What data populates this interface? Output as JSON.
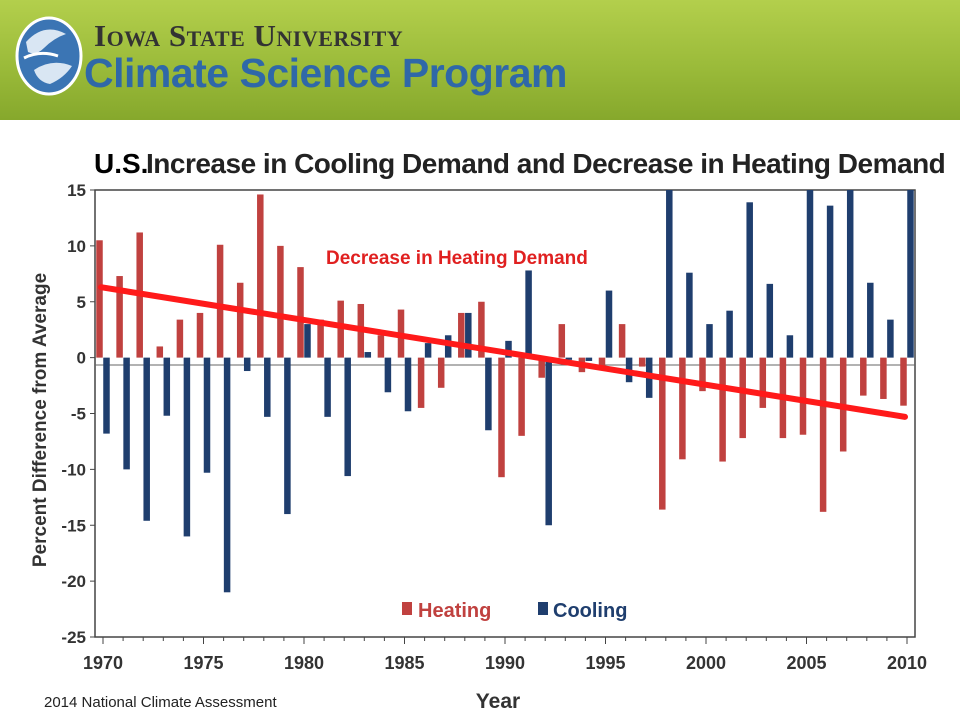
{
  "header": {
    "university": "Iowa State University",
    "program": "Climate Science Program",
    "brand_green": "#a6c440",
    "brand_blue": "#2f68a8",
    "logo_icon": "globe-swirl-icon"
  },
  "title_prefix": "U.S.",
  "source": "2014 National Climate Assessment",
  "chart_data": {
    "type": "bar",
    "title": "Increase in Cooling Demand and Decrease in Heating Demand",
    "xlabel": "Year",
    "ylabel": "Percent Difference from Average",
    "ylim": [
      -25,
      15
    ],
    "yticks": [
      15,
      10,
      5,
      0,
      -5,
      -10,
      -15,
      -20,
      -25
    ],
    "xlim": [
      1970,
      2010
    ],
    "xticks": [
      1970,
      1975,
      1980,
      1985,
      1990,
      1995,
      2000,
      2005,
      2010
    ],
    "legend_position": "bottom-center",
    "x": [
      1970,
      1971,
      1972,
      1973,
      1974,
      1975,
      1976,
      1977,
      1978,
      1979,
      1980,
      1981,
      1982,
      1983,
      1984,
      1985,
      1986,
      1987,
      1988,
      1989,
      1990,
      1991,
      1992,
      1993,
      1994,
      1995,
      1996,
      1997,
      1998,
      1999,
      2000,
      2001,
      2002,
      2003,
      2004,
      2005,
      2006,
      2007,
      2008,
      2009,
      2010
    ],
    "series": [
      {
        "name": "Heating",
        "color": "#c0413f",
        "values": [
          10.5,
          7.3,
          11.2,
          1.0,
          3.4,
          4.0,
          10.1,
          6.7,
          14.6,
          10.0,
          8.1,
          3.4,
          5.1,
          4.8,
          2.0,
          4.3,
          -4.5,
          -2.7,
          4.0,
          5.0,
          -10.7,
          -7.0,
          -1.8,
          3.0,
          -1.3,
          -0.7,
          3.0,
          -0.8,
          -13.6,
          -9.1,
          -3.0,
          -9.3,
          -7.2,
          -4.5,
          -7.2,
          -6.9,
          -13.8,
          -8.4,
          -3.4,
          -3.7,
          -4.3
        ]
      },
      {
        "name": "Cooling",
        "color": "#1f3e6e",
        "values": [
          -6.8,
          -10.0,
          -14.6,
          -5.2,
          -16.0,
          -10.3,
          -21.0,
          -1.2,
          -5.3,
          -14.0,
          3.0,
          -5.3,
          -10.6,
          0.5,
          -3.1,
          -4.8,
          1.3,
          2.0,
          4.0,
          -6.5,
          1.5,
          7.8,
          -15.0,
          -0.2,
          -0.3,
          6.0,
          -2.2,
          -3.6,
          15.0,
          7.6,
          3.0,
          4.2,
          13.9,
          6.6,
          2.0,
          15.0,
          13.6,
          15.0,
          6.7,
          3.4,
          15.0
        ]
      }
    ],
    "trend_annotation": {
      "label": "Decrease in Heating Demand",
      "color": "#ff1a1a",
      "start": [
        1970,
        6.3
      ],
      "end": [
        2010,
        -5.3
      ]
    }
  }
}
